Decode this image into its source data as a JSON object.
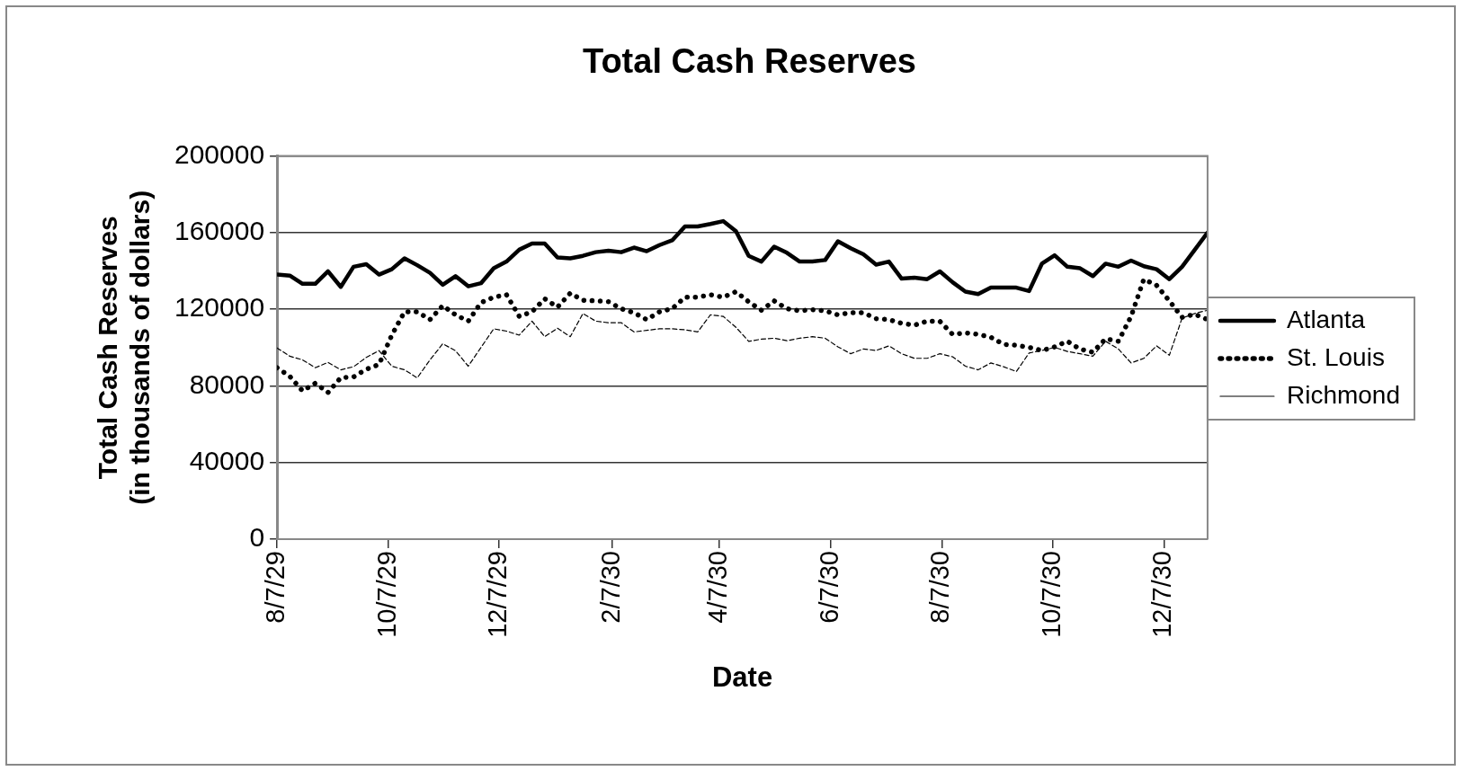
{
  "chart_data": {
    "type": "line",
    "title": "Total Cash Reserves",
    "xlabel": "Date",
    "ylabel": "Total Cash Reserves\n(in thousands of dollars)",
    "x": [
      "1929-08-07",
      "1929-08-14",
      "1929-08-21",
      "1929-08-28",
      "1929-09-04",
      "1929-09-11",
      "1929-09-18",
      "1929-09-25",
      "1929-10-02",
      "1929-10-09",
      "1929-10-16",
      "1929-10-23",
      "1929-10-30",
      "1929-11-06",
      "1929-11-13",
      "1929-11-20",
      "1929-11-27",
      "1929-12-04",
      "1929-12-11",
      "1929-12-18",
      "1929-12-25",
      "1930-01-01",
      "1930-01-08",
      "1930-01-15",
      "1930-01-22",
      "1930-01-29",
      "1930-02-05",
      "1930-02-12",
      "1930-02-19",
      "1930-02-26",
      "1930-03-05",
      "1930-03-12",
      "1930-03-19",
      "1930-03-26",
      "1930-04-02",
      "1930-04-09",
      "1930-04-16",
      "1930-04-23",
      "1930-04-30",
      "1930-05-07",
      "1930-05-14",
      "1930-05-21",
      "1930-05-28",
      "1930-06-04",
      "1930-06-11",
      "1930-06-18",
      "1930-06-25",
      "1930-07-02",
      "1930-07-09",
      "1930-07-16",
      "1930-07-23",
      "1930-07-30",
      "1930-08-06",
      "1930-08-13",
      "1930-08-20",
      "1930-08-27",
      "1930-09-03",
      "1930-09-10",
      "1930-09-17",
      "1930-09-24",
      "1930-10-01",
      "1930-10-08",
      "1930-10-15",
      "1930-10-22",
      "1930-10-29",
      "1930-11-05",
      "1930-11-12",
      "1930-11-19",
      "1930-11-26",
      "1930-12-03",
      "1930-12-10",
      "1930-12-17",
      "1930-12-24",
      "1930-12-31"
    ],
    "series": [
      {
        "name": "Atlanta",
        "color": "#000000",
        "line_style": "solid",
        "values": [
          138100,
          137600,
          133300,
          133300,
          139800,
          131700,
          142200,
          143500,
          138100,
          140900,
          146600,
          143000,
          139000,
          132800,
          137300,
          132000,
          133600,
          141400,
          144900,
          151100,
          154300,
          154300,
          147000,
          146600,
          147900,
          149800,
          150600,
          149800,
          152200,
          150300,
          153500,
          156000,
          163200,
          163200,
          164500,
          166000,
          160800,
          147900,
          144900,
          152700,
          149500,
          144900,
          144900,
          145700,
          155500,
          151900,
          148700,
          143300,
          144900,
          136000,
          136500,
          135700,
          139800,
          134100,
          129200,
          127900,
          131300,
          131300,
          131300,
          129500,
          143800,
          148200,
          142200,
          141400,
          137300,
          143800,
          142200,
          145400,
          142500,
          140900,
          135700,
          142200,
          151100,
          160000
        ]
      },
      {
        "name": "St. Louis",
        "color": "#000000",
        "line_style": "dotted",
        "values": [
          89500,
          85000,
          77400,
          81400,
          76600,
          84300,
          84700,
          88700,
          91200,
          106500,
          118700,
          118700,
          114600,
          121900,
          117100,
          113800,
          123500,
          126300,
          127600,
          116300,
          118700,
          125500,
          121100,
          128400,
          124700,
          124400,
          124000,
          120300,
          118200,
          114600,
          118700,
          120300,
          126300,
          126300,
          127600,
          126300,
          129200,
          123900,
          119500,
          124400,
          120300,
          119200,
          119800,
          119200,
          117100,
          118200,
          118200,
          115100,
          114600,
          112700,
          111700,
          113800,
          113700,
          106900,
          107700,
          106900,
          105400,
          101700,
          101200,
          100100,
          98500,
          100400,
          103300,
          99200,
          97600,
          104600,
          103300,
          116300,
          135700,
          132500,
          124400,
          115800,
          117400,
          114600
        ]
      },
      {
        "name": "Richmond",
        "color": "#000000",
        "line_style": "dashed",
        "values": [
          99800,
          95500,
          93600,
          89500,
          92300,
          88400,
          90000,
          94900,
          98400,
          90300,
          88400,
          84200,
          93600,
          102000,
          98400,
          90300,
          100100,
          109800,
          108600,
          106500,
          113800,
          105700,
          110100,
          105700,
          117800,
          113800,
          113000,
          113000,
          108200,
          109000,
          109800,
          109800,
          109300,
          108200,
          117100,
          116300,
          110600,
          103300,
          104400,
          104900,
          103600,
          104900,
          105700,
          104900,
          100400,
          96800,
          99300,
          98500,
          100900,
          96800,
          94400,
          94400,
          96800,
          95200,
          90300,
          88400,
          92000,
          90000,
          87500,
          97200,
          98500,
          100100,
          98000,
          96800,
          95500,
          103300,
          99300,
          92000,
          94400,
          100900,
          96000,
          115400,
          117800,
          119500
        ]
      }
    ],
    "xlim": [
      "1929-08-07",
      "1930-12-31"
    ],
    "xticks": [
      {
        "value": "1929-08-07",
        "label": "8/7/29"
      },
      {
        "value": "1929-10-07",
        "label": "10/7/29"
      },
      {
        "value": "1929-12-07",
        "label": "12/7/29"
      },
      {
        "value": "1930-02-07",
        "label": "2/7/30"
      },
      {
        "value": "1930-04-07",
        "label": "4/7/30"
      },
      {
        "value": "1930-06-07",
        "label": "6/7/30"
      },
      {
        "value": "1930-08-07",
        "label": "8/7/30"
      },
      {
        "value": "1930-10-07",
        "label": "10/7/30"
      },
      {
        "value": "1930-12-07",
        "label": "12/7/30"
      }
    ],
    "ylim": [
      0,
      200000
    ],
    "yticks": [
      0,
      40000,
      80000,
      120000,
      160000,
      200000
    ],
    "grid": "y",
    "legend": "right",
    "marker": "none"
  }
}
